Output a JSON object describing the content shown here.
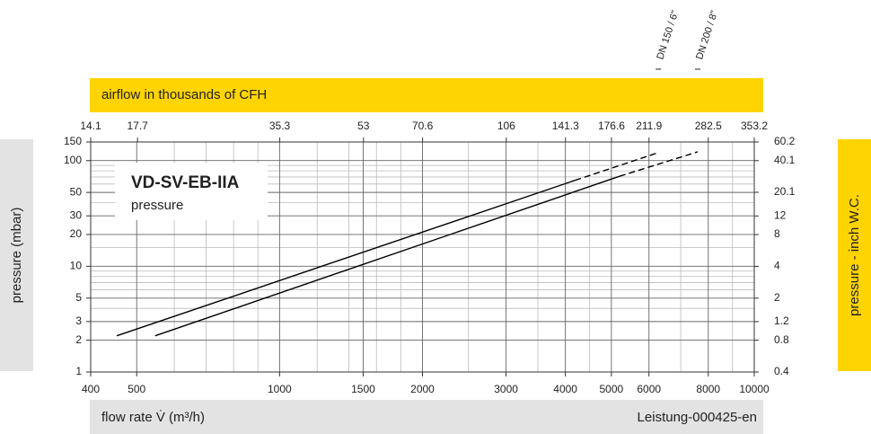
{
  "chart_data": {
    "type": "line",
    "title": "VD-SV-EB-IIA",
    "subtitle": "pressure",
    "x_label": "flow rate V̇ (m³/h)",
    "x2_label": "airflow in thousands of CFH",
    "y_label": "pressure (mbar)",
    "y2_label": "pressure - inch W.C.",
    "footnote": "Leistung-000425-en",
    "xscale": "log",
    "yscale": "log",
    "xlim": [
      400,
      10000
    ],
    "xticks": [
      400,
      500,
      1000,
      1500,
      2000,
      3000,
      4000,
      5000,
      6000,
      8000,
      10000
    ],
    "xminor": [
      600,
      700,
      800,
      900,
      1200,
      1400,
      1600,
      1800,
      2500,
      3500,
      4500,
      7000,
      9000
    ],
    "x2lim": [
      14.1,
      353.2
    ],
    "x2ticks": [
      14.1,
      17.7,
      35.3,
      53,
      70.6,
      106,
      141.3,
      176.6,
      211.9,
      282.5,
      353.2
    ],
    "ylim": [
      1,
      150
    ],
    "yticks": [
      1,
      2,
      3,
      5,
      10,
      20,
      30,
      50,
      100,
      150
    ],
    "yminor": [
      4,
      6,
      7,
      8,
      9,
      15,
      40,
      60,
      70,
      80,
      90
    ],
    "y2lim": [
      0.4,
      60.2
    ],
    "y2ticks": [
      0.4,
      0.8,
      1.2,
      2,
      4,
      8,
      12,
      20.1,
      40.1,
      60.2
    ],
    "grid": true,
    "series": [
      {
        "name": "DN 150 / 6\"",
        "color": "#000000",
        "x": [
          454,
          4190,
          6280
        ],
        "values": [
          2.2,
          65,
          119
        ],
        "line_styles": [
          "solid",
          "dashed"
        ]
      },
      {
        "name": "DN 200 / 8\"",
        "color": "#000000",
        "x": [
          547,
          5200,
          7600
        ],
        "values": [
          2.2,
          71,
          121
        ],
        "line_styles": [
          "solid",
          "dashed"
        ]
      }
    ]
  }
}
